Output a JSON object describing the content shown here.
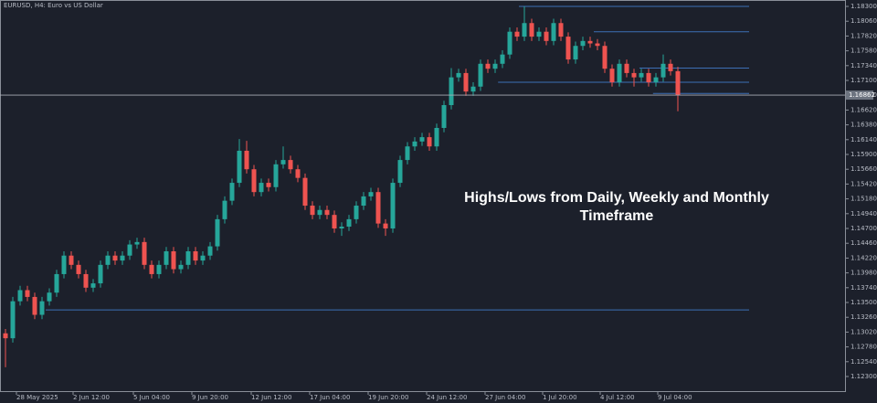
{
  "chart_data": {
    "type": "candlestick",
    "symbol": "EURUSD, H4:  Euro vs US Dollar",
    "annotation": "Highs/Lows from Daily, Weekly and Monthly Timeframe",
    "x": [
      0,
      1,
      2,
      3,
      4,
      5,
      6,
      7,
      8,
      9,
      10,
      11,
      12,
      13,
      14,
      15,
      16,
      17,
      18,
      19,
      20,
      21,
      22,
      23,
      24,
      25,
      26,
      27,
      28,
      29,
      30,
      31,
      32,
      33,
      34,
      35,
      36,
      37,
      38,
      39,
      40,
      41,
      42,
      43,
      44,
      45,
      46,
      47,
      48,
      49,
      50,
      51,
      52,
      53,
      54,
      55,
      56,
      57,
      58,
      59,
      60,
      61,
      62,
      63,
      64,
      65,
      66,
      67,
      68,
      69,
      70,
      71,
      72,
      73,
      74,
      75,
      76,
      77,
      78,
      79,
      80,
      81,
      82,
      83,
      84,
      85,
      86,
      87,
      88,
      89,
      90,
      91,
      92
    ],
    "open": [
      1.13,
      1.1292,
      1.1352,
      1.137,
      1.1359,
      1.133,
      1.1352,
      1.1366,
      1.1396,
      1.1426,
      1.1411,
      1.1396,
      1.1374,
      1.1381,
      1.1411,
      1.1426,
      1.1418,
      1.1426,
      1.1444,
      1.1448,
      1.1411,
      1.1396,
      1.1411,
      1.1433,
      1.1404,
      1.1411,
      1.1433,
      1.1418,
      1.1426,
      1.1441,
      1.1485,
      1.1515,
      1.1544,
      1.1596,
      1.1566,
      1.1529,
      1.1544,
      1.1537,
      1.1574,
      1.1581,
      1.1566,
      1.1552,
      1.1507,
      1.1492,
      1.15,
      1.1492,
      1.147,
      1.1473,
      1.1485,
      1.1507,
      1.1522,
      1.1529,
      1.1478,
      1.147,
      1.1544,
      1.1581,
      1.1603,
      1.1611,
      1.1618,
      1.1603,
      1.1633,
      1.167,
      1.1715,
      1.1722,
      1.1692,
      1.17,
      1.1737,
      1.1729,
      1.1737,
      1.1752,
      1.1789,
      1.1781,
      1.1803,
      1.1781,
      1.1789,
      1.1774,
      1.1803,
      1.1781,
      1.1744,
      1.1766,
      1.1774,
      1.177,
      1.1766,
      1.1729,
      1.1707,
      1.1737,
      1.1722,
      1.1715,
      1.1722,
      1.1707,
      1.1715,
      1.1737,
      1.1725
    ],
    "high": [
      1.1307,
      1.1359,
      1.1377,
      1.1377,
      1.1366,
      1.1359,
      1.1373,
      1.1403,
      1.1433,
      1.1433,
      1.1418,
      1.1403,
      1.1388,
      1.1418,
      1.1433,
      1.1433,
      1.1433,
      1.1451,
      1.1455,
      1.1455,
      1.1418,
      1.1418,
      1.144,
      1.144,
      1.1418,
      1.144,
      1.144,
      1.1433,
      1.1448,
      1.1492,
      1.1522,
      1.1551,
      1.1615,
      1.1612,
      1.1573,
      1.1551,
      1.1551,
      1.1581,
      1.1603,
      1.1588,
      1.1573,
      1.1559,
      1.1514,
      1.1507,
      1.1507,
      1.1499,
      1.148,
      1.1492,
      1.1514,
      1.1529,
      1.1536,
      1.1536,
      1.1485,
      1.1551,
      1.1588,
      1.161,
      1.1618,
      1.1625,
      1.1625,
      1.164,
      1.1677,
      1.173,
      1.1729,
      1.1729,
      1.1707,
      1.1744,
      1.1744,
      1.1744,
      1.1759,
      1.1796,
      1.1796,
      1.183,
      1.181,
      1.1796,
      1.1796,
      1.181,
      1.181,
      1.1788,
      1.1773,
      1.1781,
      1.1781,
      1.1777,
      1.1773,
      1.1736,
      1.1744,
      1.1744,
      1.1729,
      1.1729,
      1.1729,
      1.1722,
      1.1752,
      1.1744,
      1.1732
    ],
    "low": [
      1.1245,
      1.1285,
      1.1345,
      1.1352,
      1.1323,
      1.1323,
      1.1345,
      1.1359,
      1.1389,
      1.1404,
      1.1389,
      1.1367,
      1.1367,
      1.1374,
      1.1404,
      1.1411,
      1.1411,
      1.1419,
      1.1437,
      1.1404,
      1.1389,
      1.1389,
      1.1404,
      1.1397,
      1.1397,
      1.1404,
      1.1411,
      1.1411,
      1.1419,
      1.1434,
      1.1478,
      1.1508,
      1.1537,
      1.1559,
      1.1522,
      1.1522,
      1.153,
      1.153,
      1.1567,
      1.1559,
      1.1545,
      1.15,
      1.1485,
      1.1485,
      1.1485,
      1.1463,
      1.1458,
      1.1466,
      1.1478,
      1.15,
      1.1515,
      1.1471,
      1.1458,
      1.1463,
      1.1537,
      1.1574,
      1.1596,
      1.1604,
      1.1596,
      1.1596,
      1.1626,
      1.1663,
      1.1708,
      1.1685,
      1.1685,
      1.1693,
      1.1722,
      1.1722,
      1.173,
      1.1745,
      1.1774,
      1.1774,
      1.1774,
      1.1774,
      1.1767,
      1.1767,
      1.1774,
      1.1737,
      1.1737,
      1.1759,
      1.1763,
      1.1759,
      1.1722,
      1.17,
      1.17,
      1.1715,
      1.17,
      1.1708,
      1.17,
      1.17,
      1.1708,
      1.1718,
      1.166
    ],
    "close": [
      1.1292,
      1.1352,
      1.137,
      1.1359,
      1.133,
      1.1352,
      1.1366,
      1.1396,
      1.1426,
      1.1411,
      1.1396,
      1.1374,
      1.1381,
      1.1411,
      1.1426,
      1.1418,
      1.1426,
      1.1444,
      1.1448,
      1.1411,
      1.1396,
      1.1411,
      1.1433,
      1.1404,
      1.1411,
      1.1433,
      1.1418,
      1.1426,
      1.1441,
      1.1485,
      1.1515,
      1.1544,
      1.1596,
      1.1566,
      1.1529,
      1.1544,
      1.1537,
      1.1574,
      1.1581,
      1.1566,
      1.1552,
      1.1507,
      1.1492,
      1.15,
      1.1492,
      1.147,
      1.1473,
      1.1485,
      1.1507,
      1.1522,
      1.1529,
      1.1478,
      1.147,
      1.1544,
      1.1581,
      1.1603,
      1.1611,
      1.1618,
      1.1603,
      1.1633,
      1.167,
      1.1715,
      1.1722,
      1.1692,
      1.17,
      1.1737,
      1.1729,
      1.1737,
      1.1752,
      1.1789,
      1.1781,
      1.1803,
      1.1781,
      1.1789,
      1.1774,
      1.1803,
      1.1781,
      1.1744,
      1.1766,
      1.1774,
      1.177,
      1.1766,
      1.1729,
      1.1707,
      1.1737,
      1.1722,
      1.1715,
      1.1722,
      1.1707,
      1.1715,
      1.1737,
      1.1725,
      1.1686
    ],
    "up_color": "#26a69a",
    "down_color": "#ef5350",
    "levels": [
      {
        "value": 1.183,
        "x": [
          70.25,
          101.75
        ]
      },
      {
        "value": 1.1789,
        "x": [
          80.5,
          101.75
        ]
      },
      {
        "value": 1.173,
        "x": [
          86.75,
          101.75
        ]
      },
      {
        "value": 1.1707,
        "x": [
          67.4,
          101.75
        ]
      },
      {
        "value": 1.1689,
        "x": [
          88.6,
          101.75
        ]
      },
      {
        "value": 1.1338,
        "x": [
          5.5,
          101.75
        ]
      }
    ],
    "level_color": "#3d6fb6",
    "current_price": {
      "value": 1.16862,
      "label": "1.16862"
    },
    "xlim": [
      -0.75,
      114.875
    ],
    "xticks": [
      {
        "value": 1.5,
        "label": "28 May 2025"
      },
      {
        "value": 9.25,
        "label": "2 Jun 12:00"
      },
      {
        "value": 17.5,
        "label": "5 Jun 04:00"
      },
      {
        "value": 25.5,
        "label": "9 Jun 20:00"
      },
      {
        "value": 33.625,
        "label": "12 Jun 12:00"
      },
      {
        "value": 41.625,
        "label": "17 Jun 04:00"
      },
      {
        "value": 49.625,
        "label": "19 Jun 20:00"
      },
      {
        "value": 57.625,
        "label": "24 Jun 12:00"
      },
      {
        "value": 65.625,
        "label": "27 Jun 04:00"
      },
      {
        "value": 73.5,
        "label": "1 Jul 20:00"
      },
      {
        "value": 81.375,
        "label": "4 Jul 12:00"
      },
      {
        "value": 89.25,
        "label": "9 Jul 04:00"
      }
    ],
    "ylim": [
      1.12063,
      1.18404
    ],
    "yticks": [
      {
        "value": 1.183,
        "label": "1.18300"
      },
      {
        "value": 1.1806,
        "label": "1.18060"
      },
      {
        "value": 1.1782,
        "label": "1.17820"
      },
      {
        "value": 1.1758,
        "label": "1.17580"
      },
      {
        "value": 1.1734,
        "label": "1.17340"
      },
      {
        "value": 1.171,
        "label": "1.17100"
      },
      {
        "value": 1.1686,
        "label": "1.16860"
      },
      {
        "value": 1.1662,
        "label": "1.16620"
      },
      {
        "value": 1.1638,
        "label": "1.16380"
      },
      {
        "value": 1.1614,
        "label": "1.16140"
      },
      {
        "value": 1.159,
        "label": "1.15900"
      },
      {
        "value": 1.1566,
        "label": "1.15660"
      },
      {
        "value": 1.1542,
        "label": "1.15420"
      },
      {
        "value": 1.1518,
        "label": "1.15180"
      },
      {
        "value": 1.1494,
        "label": "1.14940"
      },
      {
        "value": 1.147,
        "label": "1.14700"
      },
      {
        "value": 1.1446,
        "label": "1.14460"
      },
      {
        "value": 1.1422,
        "label": "1.14220"
      },
      {
        "value": 1.1398,
        "label": "1.13980"
      },
      {
        "value": 1.1374,
        "label": "1.13740"
      },
      {
        "value": 1.135,
        "label": "1.13500"
      },
      {
        "value": 1.1326,
        "label": "1.13260"
      },
      {
        "value": 1.1302,
        "label": "1.13020"
      },
      {
        "value": 1.1278,
        "label": "1.12780"
      },
      {
        "value": 1.1254,
        "label": "1.12540"
      },
      {
        "value": 1.123,
        "label": "1.12300"
      }
    ]
  }
}
